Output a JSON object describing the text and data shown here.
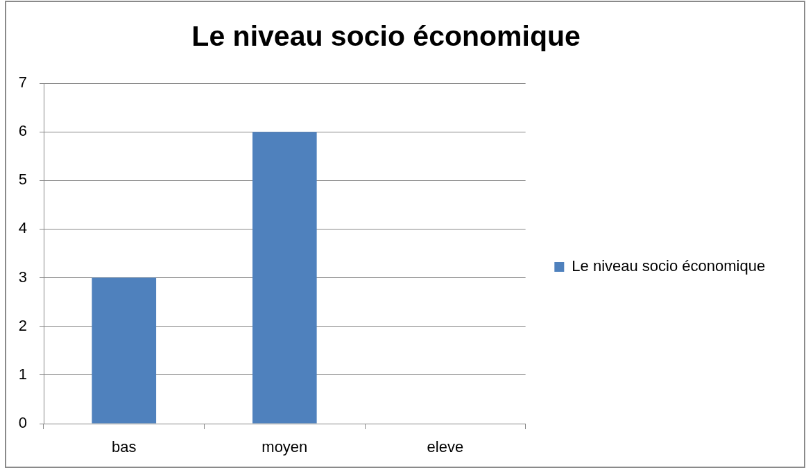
{
  "chart_data": {
    "type": "bar",
    "title": "Le niveau socio économique",
    "categories": [
      "bas",
      "moyen",
      "eleve"
    ],
    "series": [
      {
        "name": "Le niveau socio économique",
        "color": "#4f81bd",
        "values": [
          3,
          6,
          0
        ]
      }
    ],
    "ylim": [
      0,
      7
    ],
    "yticks": [
      0,
      1,
      2,
      3,
      4,
      5,
      6,
      7
    ],
    "grid": "y",
    "legend": "right"
  }
}
